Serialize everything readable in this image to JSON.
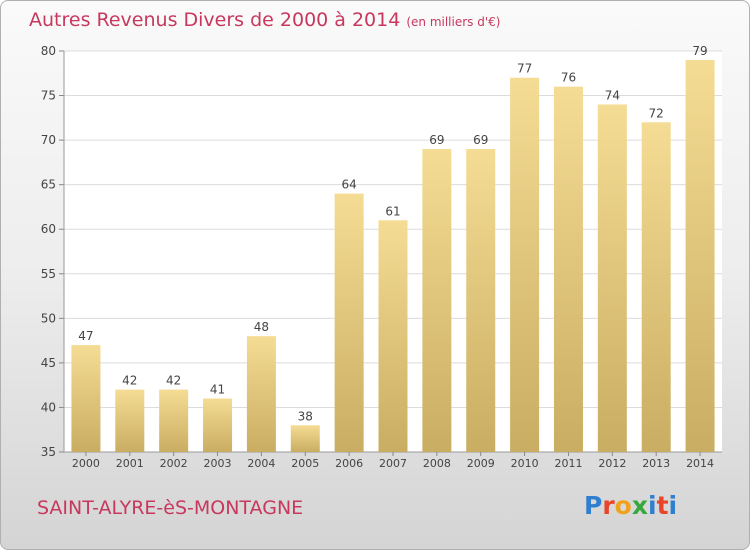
{
  "header": {
    "title": "Autres Revenus Divers de 2000 à 2014",
    "unit": "(en milliers d'€)"
  },
  "footer": {
    "place": "SAINT-ALYRE-èS-MONTAGNE",
    "logo": "Proxiti"
  },
  "colors": {
    "title": "#c8385e",
    "bar_light": "#f5dc94",
    "bar_dark": "#c9ad62"
  },
  "chart_data": {
    "type": "bar",
    "title": "Autres Revenus Divers de 2000 à 2014",
    "subtitle": "(en milliers d'€)",
    "xlabel": "",
    "ylabel": "",
    "categories": [
      "2000",
      "2001",
      "2002",
      "2003",
      "2004",
      "2005",
      "2006",
      "2007",
      "2008",
      "2009",
      "2010",
      "2011",
      "2012",
      "2013",
      "2014"
    ],
    "values": [
      47,
      42,
      42,
      41,
      48,
      38,
      64,
      61,
      69,
      69,
      77,
      76,
      74,
      72,
      79
    ],
    "ylim": [
      35,
      80
    ],
    "yticks": [
      35,
      40,
      45,
      50,
      55,
      60,
      65,
      70,
      75,
      80
    ],
    "grid": true,
    "legend": "none"
  }
}
